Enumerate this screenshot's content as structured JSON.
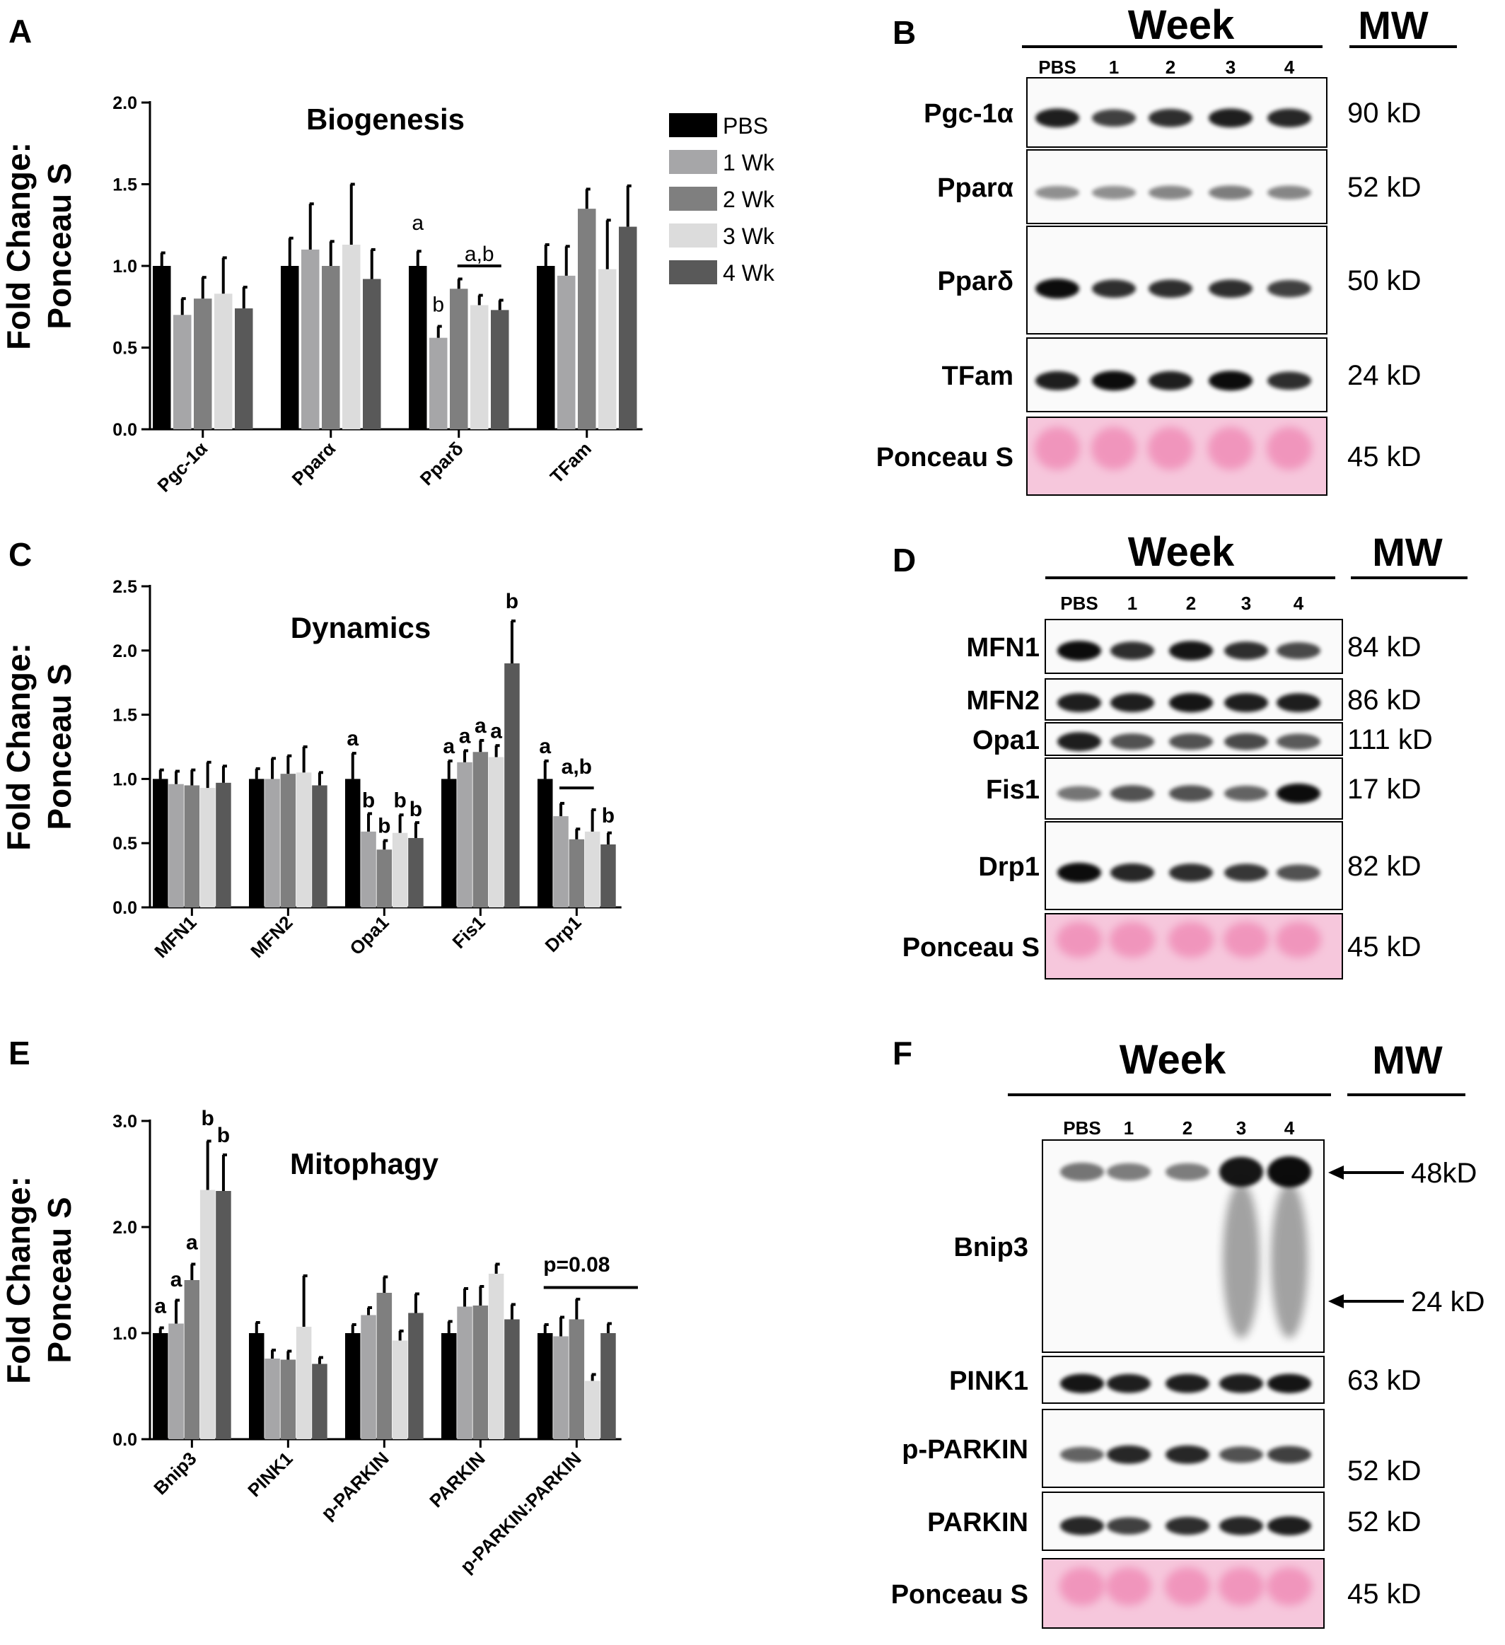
{
  "panels": {
    "A": "A",
    "B": "B",
    "C": "C",
    "D": "D",
    "E": "E",
    "F": "F"
  },
  "legend": {
    "items": [
      {
        "label": "PBS",
        "color": "#000000"
      },
      {
        "label": "1 Wk",
        "color": "#a6a6a8"
      },
      {
        "label": "2 Wk",
        "color": "#7f7f7f"
      },
      {
        "label": "3 Wk",
        "color": "#dcdcdc"
      },
      {
        "label": "4 Wk",
        "color": "#595959"
      }
    ]
  },
  "chart_data": [
    {
      "type": "bar",
      "panel": "A",
      "title": "Biogenesis",
      "ylabel_line1": "Fold Change:",
      "ylabel_line2": "Ponceau  S",
      "ylim": [
        0,
        2.0
      ],
      "yticks": [
        "0.0",
        "0.5",
        "1.0",
        "1.5",
        "2.0"
      ],
      "categories": [
        "Pgc-1α",
        "Pparα",
        "Pparδ",
        "TFam"
      ],
      "series": [
        {
          "name": "PBS",
          "values": [
            1.0,
            1.0,
            1.0,
            1.0
          ],
          "errors": [
            0.08,
            0.17,
            0.09,
            0.13
          ]
        },
        {
          "name": "1 Wk",
          "values": [
            0.7,
            1.1,
            0.56,
            0.94
          ],
          "errors": [
            0.1,
            0.28,
            0.07,
            0.18
          ]
        },
        {
          "name": "2 Wk",
          "values": [
            0.8,
            1.0,
            0.86,
            1.35
          ],
          "errors": [
            0.13,
            0.15,
            0.06,
            0.12
          ]
        },
        {
          "name": "3 Wk",
          "values": [
            0.83,
            1.13,
            0.76,
            0.98
          ],
          "errors": [
            0.22,
            0.37,
            0.06,
            0.3
          ]
        },
        {
          "name": "4 Wk",
          "values": [
            0.74,
            0.92,
            0.73,
            1.24
          ],
          "errors": [
            0.13,
            0.18,
            0.06,
            0.25
          ]
        }
      ],
      "annotations": [
        {
          "text": "a",
          "category": 2,
          "series": 0,
          "y": 1.22
        },
        {
          "text": "b",
          "category": 2,
          "series": 1,
          "y": 0.72
        },
        {
          "text": "a,b",
          "category": 2,
          "series": 3,
          "y": 1.03
        }
      ],
      "brackets": [
        {
          "category": 2,
          "from_series": 2,
          "to_series": 4,
          "y": 1.0
        }
      ]
    },
    {
      "type": "bar",
      "panel": "C",
      "title": "Dynamics",
      "ylabel_line1": "Fold Change:",
      "ylabel_line2": "Ponceau  S",
      "ylim": [
        0,
        2.5
      ],
      "yticks": [
        "0.0",
        "0.5",
        "1.0",
        "1.5",
        "2.0",
        "2.5"
      ],
      "categories": [
        "MFN1",
        "MFN2",
        "Opa1",
        "Fis1",
        "Drp1"
      ],
      "series": [
        {
          "name": "PBS",
          "values": [
            1.0,
            1.0,
            1.0,
            1.0,
            1.0
          ],
          "errors": [
            0.07,
            0.08,
            0.2,
            0.14,
            0.14
          ]
        },
        {
          "name": "1 Wk",
          "values": [
            0.96,
            1.0,
            0.59,
            1.13,
            0.71
          ],
          "errors": [
            0.1,
            0.16,
            0.14,
            0.09,
            0.1
          ]
        },
        {
          "name": "2 Wk",
          "values": [
            0.95,
            1.04,
            0.45,
            1.21,
            0.53
          ],
          "errors": [
            0.12,
            0.14,
            0.07,
            0.09,
            0.08
          ]
        },
        {
          "name": "3 Wk",
          "values": [
            0.93,
            1.05,
            0.58,
            1.17,
            0.59
          ],
          "errors": [
            0.2,
            0.2,
            0.14,
            0.09,
            0.17
          ]
        },
        {
          "name": "4 Wk",
          "values": [
            0.97,
            0.95,
            0.54,
            1.9,
            0.49
          ],
          "errors": [
            0.13,
            0.1,
            0.12,
            0.33,
            0.09
          ]
        }
      ],
      "annotations": [
        {
          "text": "a",
          "category": 2,
          "series": 0,
          "y": 1.26
        },
        {
          "text": "b",
          "category": 2,
          "series": 1,
          "y": 0.78
        },
        {
          "text": "b",
          "category": 2,
          "series": 2,
          "y": 0.58
        },
        {
          "text": "b",
          "category": 2,
          "series": 3,
          "y": 0.78
        },
        {
          "text": "b",
          "category": 2,
          "series": 4,
          "y": 0.71
        },
        {
          "text": "a",
          "category": 3,
          "series": 0,
          "y": 1.2
        },
        {
          "text": "a",
          "category": 3,
          "series": 1,
          "y": 1.28
        },
        {
          "text": "a",
          "category": 3,
          "series": 2,
          "y": 1.36
        },
        {
          "text": "a",
          "category": 3,
          "series": 3,
          "y": 1.32
        },
        {
          "text": "b",
          "category": 3,
          "series": 4,
          "y": 2.33
        },
        {
          "text": "a",
          "category": 4,
          "series": 0,
          "y": 1.2
        },
        {
          "text": "a,b",
          "category": 4,
          "series": 2,
          "y": 1.04
        },
        {
          "text": "b",
          "category": 4,
          "series": 4,
          "y": 0.66
        }
      ],
      "brackets": [
        {
          "category": 4,
          "from_series": 1,
          "to_series": 3,
          "y": 0.93
        }
      ]
    },
    {
      "type": "bar",
      "panel": "E",
      "title": "Mitophagy",
      "ylabel_line1": "Fold Change:",
      "ylabel_line2": "Ponceau  S",
      "ylim": [
        0,
        3.0
      ],
      "yticks": [
        "0.0",
        "1.0",
        "2.0",
        "3.0"
      ],
      "categories": [
        "Bnip3",
        "PINK1",
        "p-PARKIN",
        "PARKIN",
        "p-PARKIN:PARKIN"
      ],
      "series": [
        {
          "name": "PBS",
          "values": [
            1.0,
            1.0,
            1.0,
            1.0,
            1.0
          ],
          "errors": [
            0.05,
            0.1,
            0.08,
            0.11,
            0.08
          ]
        },
        {
          "name": "1 Wk",
          "values": [
            1.09,
            0.76,
            1.17,
            1.25,
            0.97
          ],
          "errors": [
            0.22,
            0.08,
            0.07,
            0.17,
            0.18
          ]
        },
        {
          "name": "2 Wk",
          "values": [
            1.5,
            0.75,
            1.38,
            1.26,
            1.13
          ],
          "errors": [
            0.15,
            0.08,
            0.15,
            0.18,
            0.19
          ]
        },
        {
          "name": "3 Wk",
          "values": [
            2.35,
            1.06,
            0.93,
            1.56,
            0.55
          ],
          "errors": [
            0.46,
            0.48,
            0.09,
            0.09,
            0.06
          ]
        },
        {
          "name": "4 Wk",
          "values": [
            2.34,
            0.71,
            1.19,
            1.13,
            1.0
          ],
          "errors": [
            0.34,
            0.06,
            0.18,
            0.14,
            0.09
          ]
        }
      ],
      "annotations": [
        {
          "text": "a",
          "category": 0,
          "series": 0,
          "y": 1.19
        },
        {
          "text": "a",
          "category": 0,
          "series": 1,
          "y": 1.44
        },
        {
          "text": "a",
          "category": 0,
          "series": 2,
          "y": 1.79
        },
        {
          "text": "b",
          "category": 0,
          "series": 3,
          "y": 2.96
        },
        {
          "text": "b",
          "category": 0,
          "series": 4,
          "y": 2.8
        },
        {
          "text": "p=0.08",
          "category": 4,
          "series": 2,
          "y": 1.58
        }
      ],
      "brackets": [
        {
          "category": 4,
          "from_series": 0,
          "to_series": 4,
          "y": 1.43,
          "extend": 40
        }
      ]
    }
  ],
  "blots": [
    {
      "panel": "B",
      "week_title": "Week",
      "mw_title": "MW",
      "lanes": [
        "PBS",
        "1",
        "2",
        "3",
        "4"
      ],
      "rows": [
        {
          "label": "Pgc-1α",
          "mw": "90 kD",
          "pink": false,
          "bands": [
            0.9,
            0.7,
            0.8,
            0.9,
            0.85
          ]
        },
        {
          "label": "Pparα",
          "mw": "52 kD",
          "pink": false,
          "bands": [
            0.25,
            0.25,
            0.3,
            0.35,
            0.3
          ]
        },
        {
          "label": "Pparδ",
          "mw": "50 kD",
          "pink": false,
          "bands": [
            1.0,
            0.8,
            0.8,
            0.8,
            0.7
          ]
        },
        {
          "label": "TFam",
          "mw": "24 kD",
          "pink": false,
          "bands": [
            0.9,
            1.0,
            0.9,
            1.0,
            0.8
          ]
        },
        {
          "label": "Ponceau S",
          "mw": "45 kD",
          "pink": true,
          "bands": [
            1,
            1,
            1,
            1,
            1
          ]
        }
      ]
    },
    {
      "panel": "D",
      "week_title": "Week",
      "mw_title": "MW",
      "lanes": [
        "PBS",
        "1",
        "2",
        "3",
        "4"
      ],
      "rows": [
        {
          "label": "MFN1",
          "mw": "84 kD",
          "pink": false,
          "bands": [
            1.0,
            0.8,
            0.95,
            0.8,
            0.65
          ]
        },
        {
          "label": "MFN2",
          "mw": "86 kD",
          "pink": false,
          "bands": [
            0.9,
            0.9,
            0.95,
            0.9,
            0.9
          ]
        },
        {
          "label": "Opa1",
          "mw": "111 kD",
          "pink": false,
          "bands": [
            0.9,
            0.6,
            0.6,
            0.65,
            0.55
          ]
        },
        {
          "label": "Fis1",
          "mw": "17 kD",
          "pink": false,
          "bands": [
            0.4,
            0.6,
            0.6,
            0.5,
            1.0
          ]
        },
        {
          "label": "Drp1",
          "mw": "82 kD",
          "pink": false,
          "bands": [
            1.0,
            0.85,
            0.8,
            0.75,
            0.6
          ]
        },
        {
          "label": "Ponceau S",
          "mw": "45 kD",
          "pink": true,
          "bands": [
            1,
            1,
            1,
            1,
            1
          ]
        }
      ]
    },
    {
      "panel": "F",
      "week_title": "Week",
      "mw_title": "MW",
      "lanes": [
        "PBS",
        "1",
        "2",
        "3",
        "4"
      ],
      "rows": [
        {
          "label": "Bnip3",
          "mw": "48kD",
          "mw2": "24 kD",
          "pink": false,
          "bands": [
            0.4,
            0.35,
            0.35,
            0.95,
            1.0
          ]
        },
        {
          "label": "PINK1",
          "mw": "63 kD",
          "pink": false,
          "bands": [
            0.95,
            0.9,
            0.9,
            0.9,
            0.95
          ]
        },
        {
          "label": "p-PARKIN",
          "mw": "52 kD",
          "pink": false,
          "bands": [
            0.5,
            0.85,
            0.85,
            0.6,
            0.7
          ]
        },
        {
          "label": "PARKIN",
          "mw": "52 kD",
          "pink": false,
          "bands": [
            0.85,
            0.7,
            0.8,
            0.85,
            0.9
          ]
        },
        {
          "label": "Ponceau S",
          "mw": "45 kD",
          "pink": true,
          "bands": [
            1,
            1,
            1,
            1,
            1
          ]
        }
      ]
    }
  ]
}
